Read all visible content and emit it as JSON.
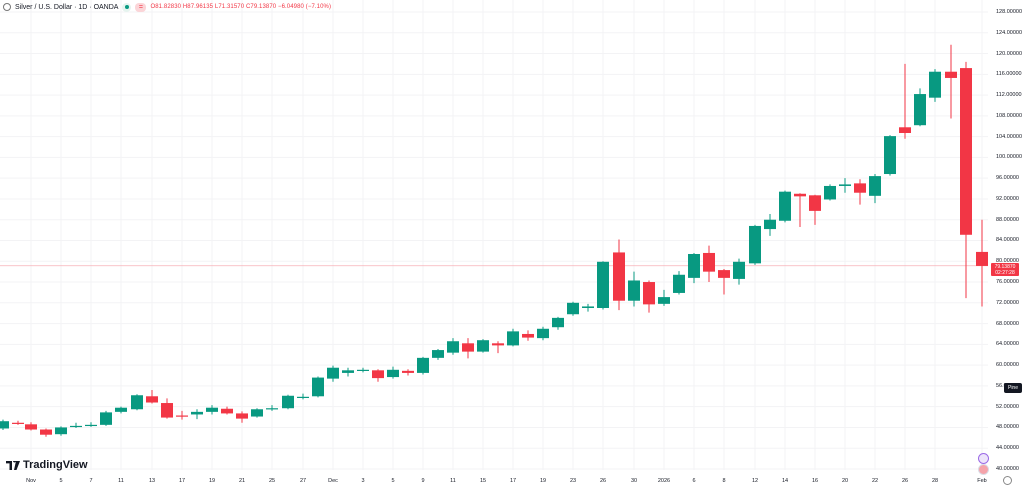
{
  "header": {
    "symbol": "Silver / U.S. Dollar · 1D · OANDA",
    "open_label": "O",
    "open": "81.82830",
    "high_label": "H",
    "high": "87.96135",
    "low_label": "L",
    "low": "71.31570",
    "close_label": "C",
    "close": "79.13870",
    "change": "−6.04980 (−7.10%)"
  },
  "branding": {
    "logo_text": "TradingView"
  },
  "price_tag": {
    "price": "79.13870",
    "countdown": "02:27:28"
  },
  "pine_tag": "Pine",
  "colors": {
    "up": "#089981",
    "down": "#f23645",
    "grid": "#f3f3f5",
    "price_line": "#f23645"
  },
  "chart_data": {
    "type": "candlestick",
    "title": "Silver / U.S. Dollar · 1D · OANDA",
    "xlabel": "",
    "ylabel": "",
    "ylim": [
      40,
      128
    ],
    "y_ticks": [
      "128.00000",
      "124.00000",
      "120.00000",
      "116.00000",
      "112.00000",
      "108.00000",
      "104.00000",
      "100.00000",
      "96.00000",
      "92.00000",
      "88.00000",
      "84.00000",
      "80.00000",
      "76.00000",
      "72.00000",
      "68.00000",
      "64.00000",
      "60.00000",
      "56.00000",
      "52.00000",
      "48.00000",
      "44.00000",
      "40.00000"
    ],
    "x_ticks": [
      {
        "label": "Nov",
        "x": 31
      },
      {
        "label": "5",
        "x": 61
      },
      {
        "label": "7",
        "x": 91
      },
      {
        "label": "11",
        "x": 121
      },
      {
        "label": "13",
        "x": 152
      },
      {
        "label": "17",
        "x": 182
      },
      {
        "label": "19",
        "x": 212
      },
      {
        "label": "21",
        "x": 242
      },
      {
        "label": "25",
        "x": 272
      },
      {
        "label": "27",
        "x": 303
      },
      {
        "label": "Dec",
        "x": 333
      },
      {
        "label": "3",
        "x": 363
      },
      {
        "label": "5",
        "x": 393
      },
      {
        "label": "9",
        "x": 423
      },
      {
        "label": "11",
        "x": 453
      },
      {
        "label": "15",
        "x": 483
      },
      {
        "label": "17",
        "x": 513
      },
      {
        "label": "19",
        "x": 543
      },
      {
        "label": "23",
        "x": 573
      },
      {
        "label": "26",
        "x": 603
      },
      {
        "label": "30",
        "x": 634
      },
      {
        "label": "2026",
        "x": 664
      },
      {
        "label": "6",
        "x": 694
      },
      {
        "label": "8",
        "x": 724
      },
      {
        "label": "12",
        "x": 755
      },
      {
        "label": "14",
        "x": 785
      },
      {
        "label": "16",
        "x": 815
      },
      {
        "label": "20",
        "x": 845
      },
      {
        "label": "22",
        "x": 875
      },
      {
        "label": "26",
        "x": 905
      },
      {
        "label": "28",
        "x": 935
      },
      {
        "label": "Feb",
        "x": 982
      }
    ],
    "grid": true,
    "last_price": 79.1387,
    "candles": [
      [
        3,
        47.8,
        49.5,
        47.5,
        49.2
      ],
      [
        18,
        48.9,
        49.3,
        48.5,
        48.7
      ],
      [
        31,
        48.6,
        49.0,
        47.4,
        47.6
      ],
      [
        46,
        47.6,
        47.8,
        46.2,
        46.6
      ],
      [
        61,
        46.7,
        48.2,
        46.4,
        48.0
      ],
      [
        76,
        48.1,
        48.9,
        47.9,
        48.3
      ],
      [
        91,
        48.3,
        49.0,
        48.1,
        48.5
      ],
      [
        106,
        48.5,
        51.2,
        48.3,
        50.9
      ],
      [
        121,
        51.0,
        52.0,
        50.7,
        51.8
      ],
      [
        137,
        51.5,
        54.4,
        51.3,
        54.2
      ],
      [
        152,
        54.0,
        55.2,
        52.6,
        52.8
      ],
      [
        167,
        52.7,
        53.6,
        49.7,
        49.9
      ],
      [
        182,
        50.3,
        51.2,
        49.5,
        50.1
      ],
      [
        197,
        50.5,
        51.5,
        49.6,
        51.0
      ],
      [
        212,
        51.0,
        52.3,
        50.5,
        51.8
      ],
      [
        227,
        51.6,
        52.0,
        50.5,
        50.7
      ],
      [
        242,
        50.7,
        51.1,
        48.9,
        49.7
      ],
      [
        257,
        50.1,
        51.7,
        49.9,
        51.5
      ],
      [
        272,
        51.5,
        52.3,
        51.2,
        51.7
      ],
      [
        288,
        51.7,
        54.3,
        51.5,
        54.1
      ],
      [
        303,
        53.7,
        54.5,
        53.4,
        53.9
      ],
      [
        318,
        54.0,
        57.8,
        53.8,
        57.6
      ],
      [
        333,
        57.4,
        59.9,
        56.8,
        59.5
      ],
      [
        348,
        58.5,
        59.5,
        57.8,
        59.0
      ],
      [
        363,
        58.9,
        59.5,
        58.6,
        59.1
      ],
      [
        378,
        59.0,
        59.2,
        56.8,
        57.5
      ],
      [
        393,
        57.7,
        59.7,
        57.4,
        59.1
      ],
      [
        408,
        58.9,
        59.2,
        58.0,
        58.5
      ],
      [
        423,
        58.5,
        61.6,
        58.2,
        61.4
      ],
      [
        438,
        61.4,
        63.1,
        61.0,
        62.9
      ],
      [
        453,
        62.4,
        65.2,
        62.0,
        64.6
      ],
      [
        468,
        64.2,
        65.2,
        61.3,
        62.6
      ],
      [
        483,
        62.6,
        65.0,
        62.4,
        64.8
      ],
      [
        498,
        64.2,
        64.6,
        62.3,
        63.8
      ],
      [
        513,
        63.8,
        67.0,
        63.6,
        66.5
      ],
      [
        528,
        66.0,
        66.7,
        64.7,
        65.3
      ],
      [
        543,
        65.2,
        67.4,
        64.8,
        67.0
      ],
      [
        558,
        67.3,
        69.3,
        66.8,
        69.1
      ],
      [
        573,
        69.8,
        72.2,
        69.5,
        72.0
      ],
      [
        588,
        71.0,
        71.8,
        70.3,
        71.3
      ],
      [
        603,
        71.0,
        80.0,
        70.7,
        79.9
      ],
      [
        619,
        81.7,
        84.2,
        70.6,
        72.4
      ],
      [
        634,
        72.4,
        78.0,
        71.3,
        76.3
      ],
      [
        649,
        76.0,
        76.3,
        70.1,
        71.7
      ],
      [
        664,
        71.8,
        74.5,
        71.4,
        73.1
      ],
      [
        679,
        73.9,
        78.1,
        73.6,
        77.4
      ],
      [
        694,
        76.8,
        81.6,
        75.8,
        81.4
      ],
      [
        709,
        81.6,
        83.0,
        76.0,
        78.0
      ],
      [
        724,
        78.3,
        78.5,
        73.6,
        76.8
      ],
      [
        739,
        76.6,
        80.5,
        75.5,
        79.9
      ],
      [
        755,
        79.6,
        87.0,
        79.3,
        86.8
      ],
      [
        770,
        86.2,
        89.1,
        84.9,
        88.0
      ],
      [
        785,
        87.8,
        93.6,
        87.5,
        93.4
      ],
      [
        800,
        93.0,
        93.1,
        86.6,
        92.5
      ],
      [
        815,
        92.7,
        92.8,
        87.0,
        89.7
      ],
      [
        830,
        91.9,
        94.8,
        91.7,
        94.5
      ],
      [
        845,
        94.5,
        96.0,
        93.2,
        94.8
      ],
      [
        860,
        95.0,
        95.8,
        90.9,
        93.2
      ],
      [
        875,
        92.6,
        96.8,
        91.2,
        96.4
      ],
      [
        890,
        96.8,
        104.3,
        96.5,
        104.1
      ],
      [
        905,
        105.8,
        118.0,
        103.6,
        104.7
      ],
      [
        920,
        106.2,
        113.3,
        106.0,
        112.2
      ],
      [
        935,
        111.5,
        117.0,
        110.7,
        116.5
      ],
      [
        951,
        116.5,
        121.7,
        107.5,
        115.3
      ],
      [
        966,
        117.2,
        118.4,
        72.9,
        85.1
      ],
      [
        982,
        81.8,
        88.0,
        71.3,
        79.1
      ]
    ]
  }
}
